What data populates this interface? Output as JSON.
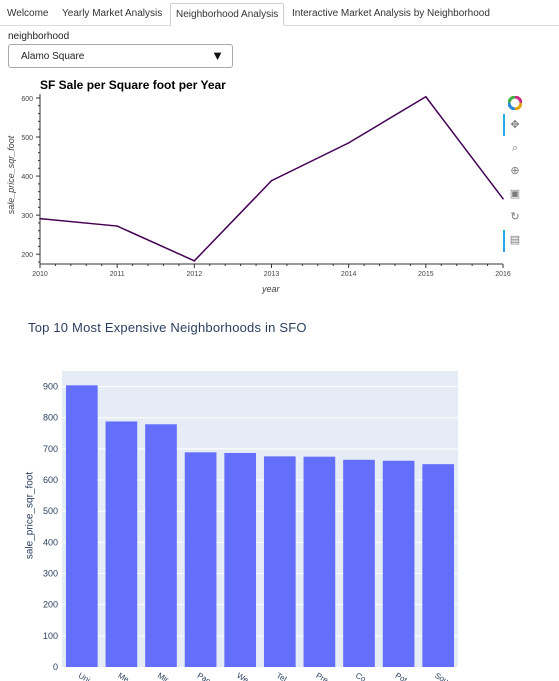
{
  "tabs": [
    {
      "label": "Welcome",
      "active": false
    },
    {
      "label": "Yearly Market Analysis",
      "active": false
    },
    {
      "label": "Neighborhood Analysis",
      "active": true
    },
    {
      "label": "Interactive Market Analysis by Neighborhood",
      "active": false
    }
  ],
  "selector": {
    "label": "neighborhood",
    "value": "Alamo Square"
  },
  "toolbar": {
    "icons": [
      "bokeh-logo-icon",
      "pan-icon",
      "box-zoom-icon",
      "wheel-zoom-icon",
      "save-icon",
      "reset-icon",
      "hover-icon"
    ]
  },
  "colors": {
    "line": "#440154",
    "bar": "#636efa",
    "plot_bg": "#e5ecf6",
    "title": "#2a3f5f"
  },
  "chart_data": [
    {
      "type": "line",
      "title": "SF Sale per Square foot per Year",
      "xlabel": "year",
      "ylabel": "sale_price_sqr_foot",
      "x": [
        2010,
        2011,
        2012,
        2013,
        2014,
        2015,
        2016
      ],
      "series": [
        {
          "values": [
            291,
            272,
            183,
            388,
            485,
            603,
            342
          ]
        }
      ],
      "xlim": [
        2010,
        2016
      ],
      "ylim": [
        180,
        605
      ],
      "xticks": [
        "2010",
        "2011",
        "2012",
        "2013",
        "2014",
        "2015",
        "2016"
      ],
      "yticks": [
        200,
        300,
        400,
        500,
        600
      ],
      "grid": false
    },
    {
      "type": "bar",
      "title": "Top 10 Most Expensive Neighborhoods in SFO",
      "xlabel": "",
      "ylabel": "sale_price_sqr_foot",
      "categories": [
        "Uni...",
        "Me...",
        "Mir...",
        "Pac...",
        "We...",
        "Tel...",
        "Pre...",
        "Co...",
        "Pot...",
        "Sou..."
      ],
      "values": [
        904,
        788,
        779,
        689,
        687,
        676,
        675,
        665,
        662,
        651
      ],
      "ylim": [
        0,
        950
      ],
      "yticks": [
        0,
        100,
        200,
        300,
        400,
        500,
        600,
        700,
        800,
        900
      ],
      "grid": true
    }
  ]
}
